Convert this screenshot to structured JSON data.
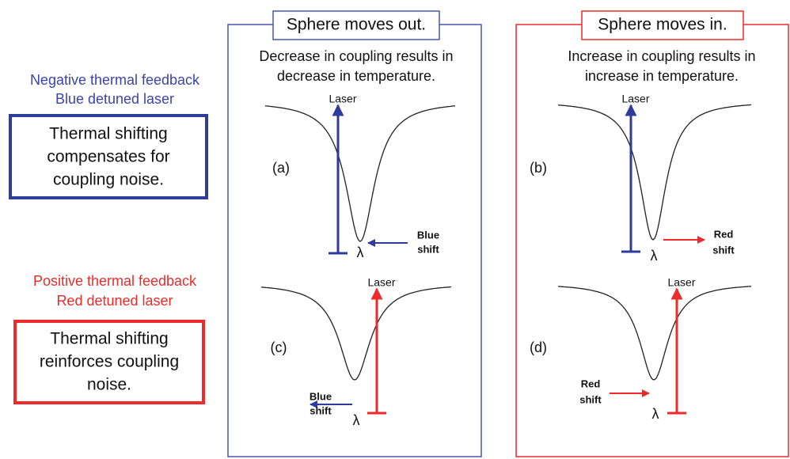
{
  "left": {
    "negative": {
      "heading": "Negative thermal feedback",
      "subheading": "Blue detuned laser",
      "box_lines": [
        "Thermal shifting",
        "compensates for",
        "coupling noise."
      ]
    },
    "positive": {
      "heading": "Positive thermal feedback",
      "subheading": "Red detuned laser",
      "box_lines": [
        "Thermal shifting",
        "reinforces coupling",
        "noise."
      ]
    }
  },
  "panels": [
    {
      "title": "Sphere moves out.",
      "subtitle_lines": [
        "Decrease in coupling results in",
        "decrease in temperature."
      ],
      "plots": [
        {
          "label": "(a)",
          "laser": "Laser",
          "lambda": "λ",
          "shift_lines": [
            "Blue",
            "shift"
          ]
        },
        {
          "label": "(c)",
          "laser": "Laser",
          "lambda": "λ",
          "shift_lines": [
            "Blue",
            "shift"
          ]
        }
      ]
    },
    {
      "title": "Sphere moves in.",
      "subtitle_lines": [
        "Increase in coupling results in",
        "increase in temperature."
      ],
      "plots": [
        {
          "label": "(b)",
          "laser": "Laser",
          "lambda": "λ",
          "shift_lines": [
            "Red",
            "shift"
          ]
        },
        {
          "label": "(d)",
          "laser": "Laser",
          "lambda": "λ",
          "shift_lines": [
            "Red",
            "shift"
          ]
        }
      ]
    }
  ]
}
